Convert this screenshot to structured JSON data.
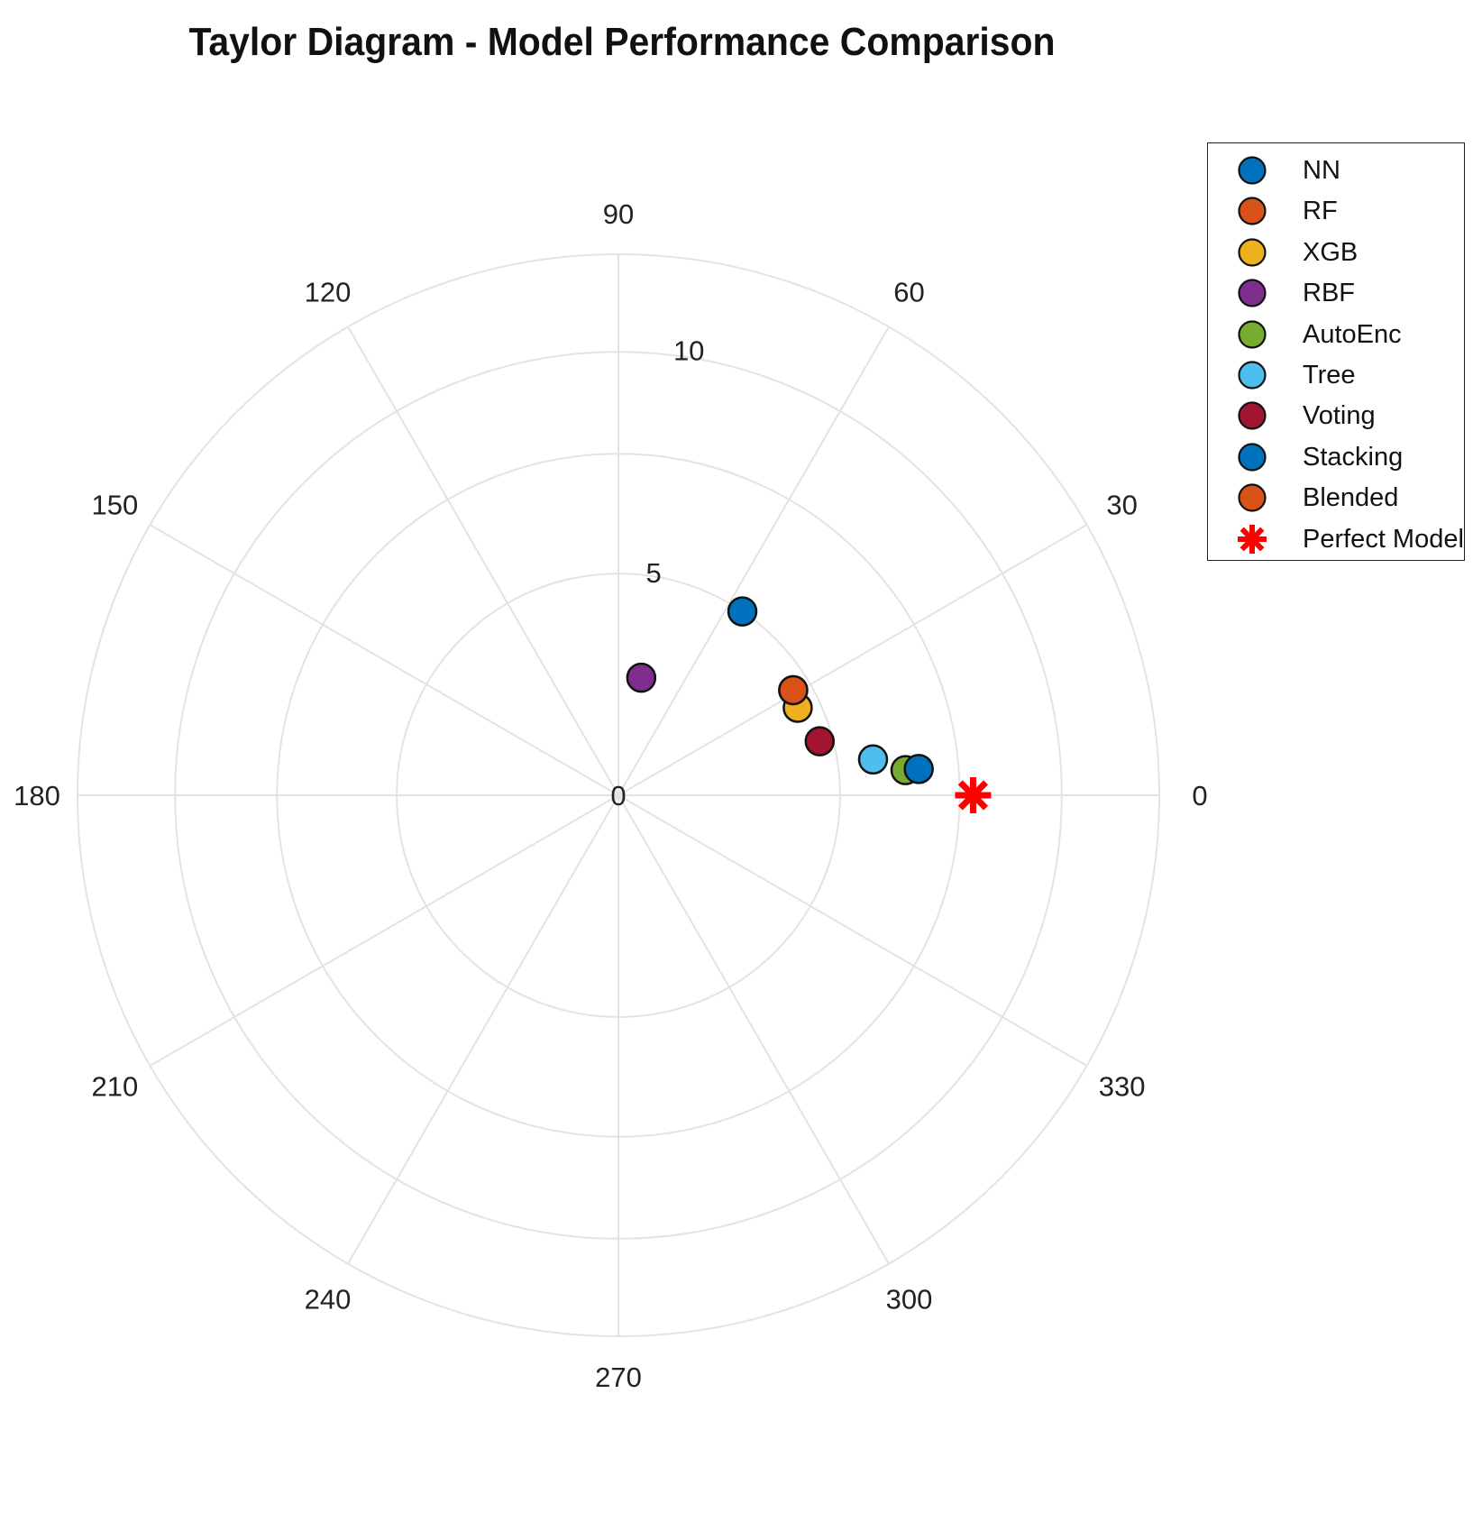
{
  "chart_data": {
    "type": "scatter",
    "subtype": "polar (Taylor diagram)",
    "title": "Taylor Diagram - Model Performance Comparison",
    "angular_ticks": [
      "90",
      "60",
      "30",
      "0",
      "330",
      "300",
      "270",
      "240",
      "210",
      "180",
      "150",
      "120"
    ],
    "radial_ticks": [
      "0",
      "5",
      "10"
    ],
    "radial_range": [
      0,
      10
    ],
    "grid": true,
    "legend_position": "top-right",
    "series": [
      {
        "name": "NN",
        "color": "#0072BD",
        "r": 5.0,
        "theta": 56
      },
      {
        "name": "RF",
        "color": "#D95319",
        "r": 4.6,
        "theta": 31
      },
      {
        "name": "XGB",
        "color": "#EDB120",
        "r": 4.5,
        "theta": 26
      },
      {
        "name": "RBF",
        "color": "#7E2F8E",
        "r": 2.7,
        "theta": 79
      },
      {
        "name": "AutoEnc",
        "color": "#77AC30",
        "r": 6.5,
        "theta": 5
      },
      {
        "name": "Tree",
        "color": "#4DBEEE",
        "r": 5.8,
        "theta": 8
      },
      {
        "name": "Voting",
        "color": "#A2142F",
        "r": 4.7,
        "theta": 15
      },
      {
        "name": "Stacking",
        "color": "#0072BD",
        "r": 6.8,
        "theta": 5
      },
      {
        "name": "Blended",
        "color": "#D95319",
        "r": 4.6,
        "theta": 31
      },
      {
        "name": "Perfect Model",
        "color": "#FF0000",
        "r": 8.0,
        "theta": 0,
        "marker": "asterisk"
      }
    ]
  }
}
